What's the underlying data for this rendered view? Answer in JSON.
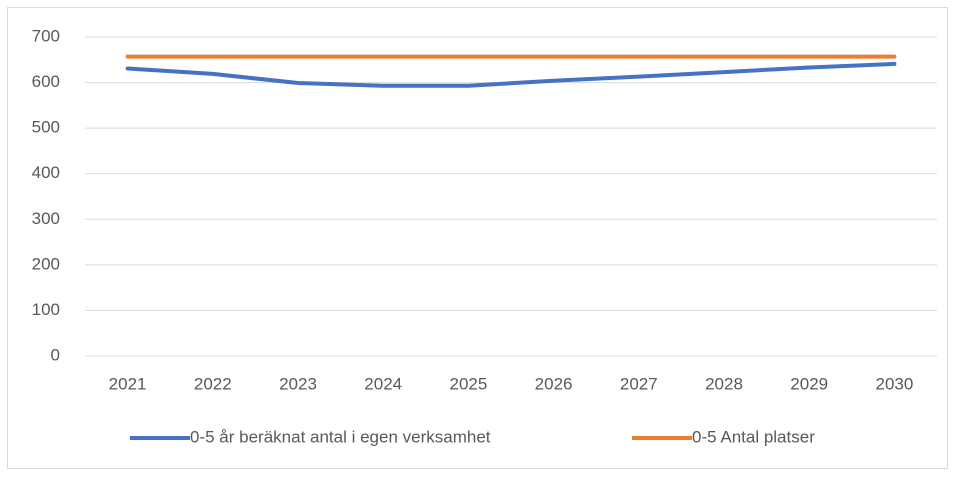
{
  "chart_data": {
    "type": "line",
    "categories": [
      "2021",
      "2022",
      "2023",
      "2024",
      "2025",
      "2026",
      "2027",
      "2028",
      "2029",
      "2030"
    ],
    "series": [
      {
        "name": "0-5 år beräknat antal i egen verksamhet",
        "color": "#4472c4",
        "values": [
          631,
          619,
          599,
          593,
          593,
          604,
          613,
          623,
          633,
          641
        ]
      },
      {
        "name": "0-5 Antal platser",
        "color": "#ed7d31",
        "values": [
          657,
          657,
          657,
          657,
          657,
          657,
          657,
          657,
          657,
          657
        ]
      }
    ],
    "ylim": [
      0,
      700
    ],
    "yticks": [
      0,
      100,
      200,
      300,
      400,
      500,
      600,
      700
    ],
    "grid": true,
    "legend": "bottom"
  }
}
